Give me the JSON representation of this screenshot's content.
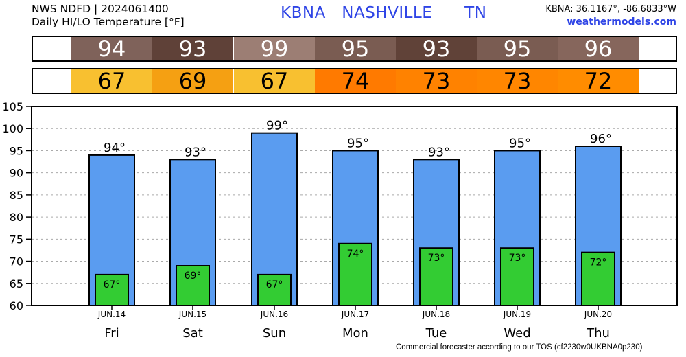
{
  "header": {
    "line1": "NWS NDFD | 2024061400",
    "line2": "Daily HI/LO Temperature [°F]",
    "station_id": "KBNA",
    "station_name": "NASHVILLE",
    "state": "TN",
    "coords": "KBNA: 36.1167°, -86.6833°W",
    "site": "weathermodels.com"
  },
  "footer": "Commercial forecaster according to our TOS (cf2230w0UKBNA0p230)",
  "colors": {
    "hi_bar": "#5a9cf0",
    "lo_bar": "#33cc33",
    "hi_strip": [
      "#7f625a",
      "#5f4138",
      "#9c7e74",
      "#7a5c52",
      "#604238",
      "#7a5c52",
      "#86665c"
    ],
    "lo_strip": [
      "#f8c030",
      "#f5a012",
      "#f8c030",
      "#ff7a00",
      "#ff8200",
      "#ff8600",
      "#ff8c00"
    ]
  },
  "chart_data": {
    "type": "bar",
    "title": "Daily HI/LO Temperature [°F]",
    "categories": [
      "Fri",
      "Sat",
      "Sun",
      "Mon",
      "Tue",
      "Wed",
      "Thu"
    ],
    "dates": [
      "JUN.14",
      "JUN.15",
      "JUN.16",
      "JUN.17",
      "JUN.18",
      "JUN.19",
      "JUN.20"
    ],
    "series": [
      {
        "name": "HI",
        "values": [
          94,
          93,
          99,
          95,
          93,
          95,
          96
        ]
      },
      {
        "name": "LO",
        "values": [
          67,
          69,
          67,
          74,
          73,
          73,
          72
        ]
      }
    ],
    "ylim": [
      60,
      105
    ],
    "yticks": [
      60,
      65,
      70,
      75,
      80,
      85,
      90,
      95,
      100,
      105
    ],
    "grid": true,
    "unit_suffix": "°"
  }
}
